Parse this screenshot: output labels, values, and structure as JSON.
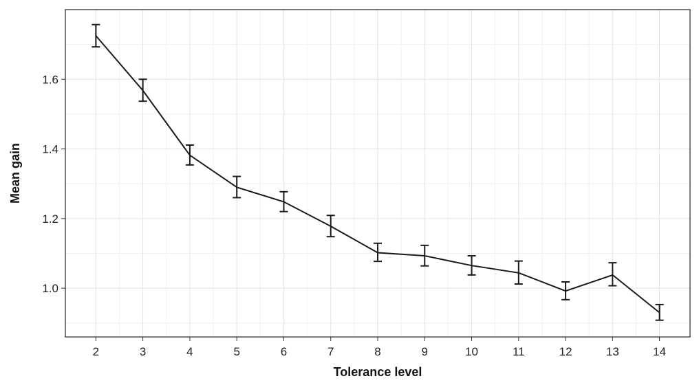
{
  "chart_data": {
    "type": "line",
    "title": "",
    "xlabel": "Tolerance level",
    "ylabel": "Mean gain",
    "x": [
      2,
      3,
      4,
      5,
      6,
      7,
      8,
      9,
      10,
      11,
      12,
      13,
      14
    ],
    "series": [
      {
        "values": [
          1.725,
          1.568,
          1.382,
          1.29,
          1.248,
          1.178,
          1.102,
          1.093,
          1.065,
          1.044,
          0.992,
          1.038,
          0.93
        ],
        "error_low": [
          1.693,
          1.537,
          1.354,
          1.26,
          1.22,
          1.148,
          1.077,
          1.064,
          1.038,
          1.012,
          0.967,
          1.007,
          0.908
        ],
        "error_high": [
          1.757,
          1.6,
          1.411,
          1.321,
          1.277,
          1.209,
          1.129,
          1.123,
          1.093,
          1.078,
          1.018,
          1.073,
          0.953
        ]
      }
    ],
    "xlim": [
      1.35,
      14.65
    ],
    "ylim": [
      0.86,
      1.8
    ],
    "y_ticks": [
      1.0,
      1.2,
      1.4,
      1.6
    ],
    "y_tick_labels": [
      "1.0",
      "1.2",
      "1.4",
      "1.6"
    ],
    "x_ticks": [
      2,
      3,
      4,
      5,
      6,
      7,
      8,
      9,
      10,
      11,
      12,
      13,
      14
    ],
    "x_tick_labels": [
      "2",
      "3",
      "4",
      "5",
      "6",
      "7",
      "8",
      "9",
      "10",
      "11",
      "12",
      "13",
      "14"
    ],
    "grid": true,
    "reference_line_x": 8,
    "colors": {
      "line": "#1a1a1a",
      "grid": "#e3e3e3",
      "reference": "#e0e0e0"
    }
  }
}
